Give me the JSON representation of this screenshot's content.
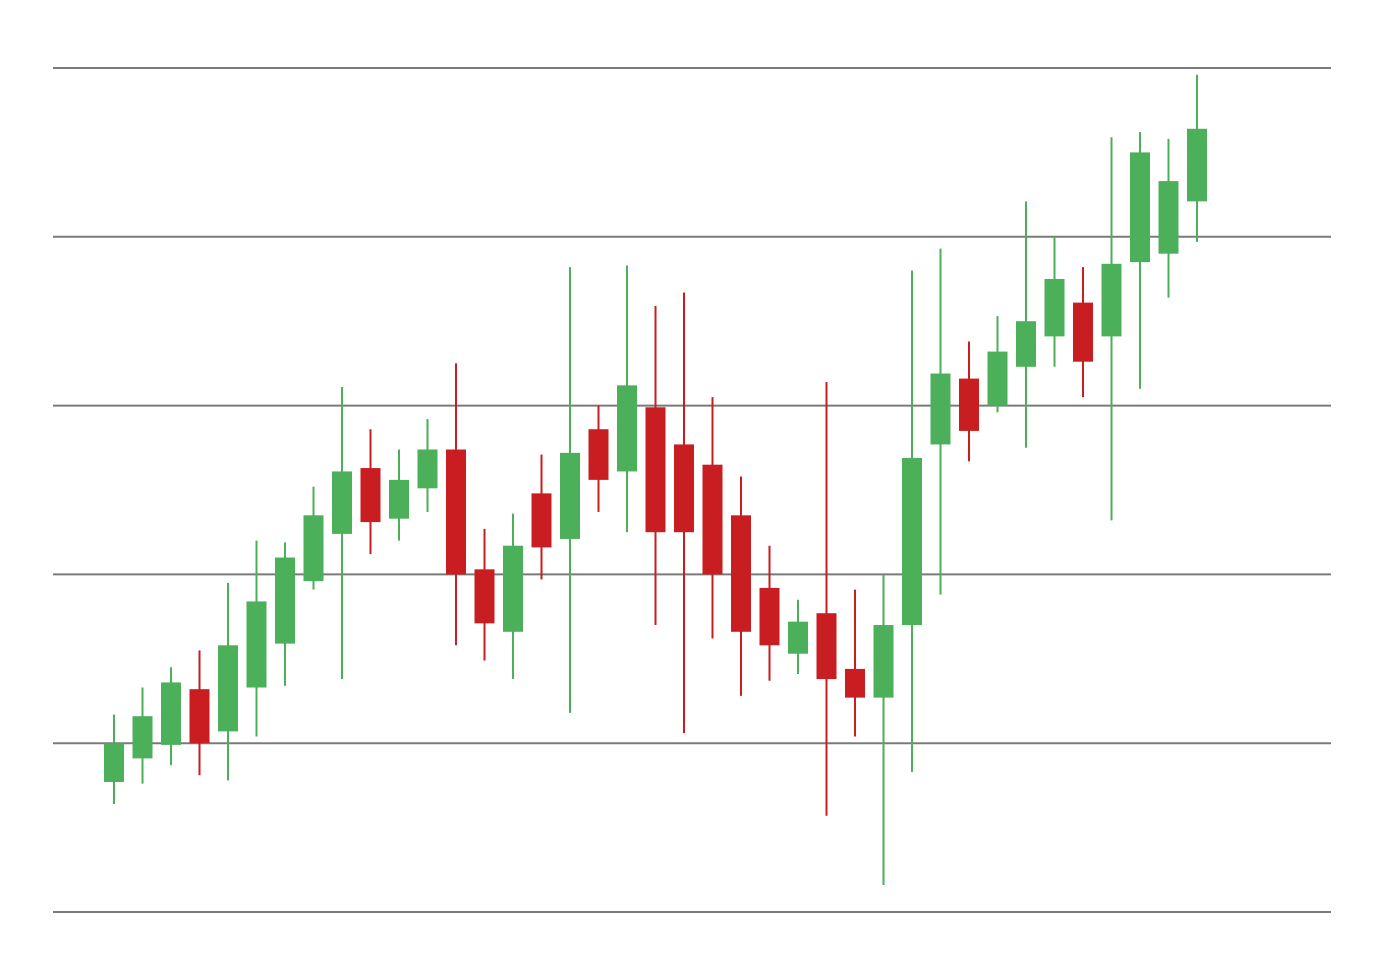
{
  "chart_data": {
    "type": "candlestick",
    "title": "",
    "xlabel": "",
    "ylabel": "",
    "ylim": [
      0,
      5
    ],
    "grid": true,
    "gridlines": [
      0,
      1,
      2,
      3,
      4,
      5
    ],
    "axis_labels_shown": false,
    "colors": {
      "up": "#4caf5a",
      "down": "#c81e22",
      "grid": "#7a7a7a",
      "background": "#ffffff"
    },
    "candles": [
      {
        "open": 0.77,
        "close": 1.0,
        "high": 1.17,
        "low": 0.64
      },
      {
        "open": 0.91,
        "close": 1.16,
        "high": 1.33,
        "low": 0.76
      },
      {
        "open": 0.99,
        "close": 1.36,
        "high": 1.45,
        "low": 0.87
      },
      {
        "open": 1.32,
        "close": 1.0,
        "high": 1.55,
        "low": 0.81
      },
      {
        "open": 1.07,
        "close": 1.58,
        "high": 1.95,
        "low": 0.78
      },
      {
        "open": 1.33,
        "close": 1.84,
        "high": 2.2,
        "low": 1.04
      },
      {
        "open": 1.59,
        "close": 2.1,
        "high": 2.19,
        "low": 1.34
      },
      {
        "open": 1.96,
        "close": 2.35,
        "high": 2.52,
        "low": 1.91
      },
      {
        "open": 2.24,
        "close": 2.61,
        "high": 3.11,
        "low": 1.38
      },
      {
        "open": 2.63,
        "close": 2.31,
        "high": 2.86,
        "low": 2.12
      },
      {
        "open": 2.33,
        "close": 2.56,
        "high": 2.74,
        "low": 2.2
      },
      {
        "open": 2.51,
        "close": 2.74,
        "high": 2.92,
        "low": 2.37
      },
      {
        "open": 2.74,
        "close": 2.0,
        "high": 3.25,
        "low": 1.58
      },
      {
        "open": 2.03,
        "close": 1.71,
        "high": 2.27,
        "low": 1.49
      },
      {
        "open": 1.66,
        "close": 2.17,
        "high": 2.36,
        "low": 1.38
      },
      {
        "open": 2.48,
        "close": 2.16,
        "high": 2.71,
        "low": 1.97
      },
      {
        "open": 2.21,
        "close": 2.72,
        "high": 3.82,
        "low": 1.18
      },
      {
        "open": 2.86,
        "close": 2.56,
        "high": 3.0,
        "low": 2.37
      },
      {
        "open": 2.61,
        "close": 3.12,
        "high": 3.83,
        "low": 2.25
      },
      {
        "open": 2.99,
        "close": 2.25,
        "high": 3.59,
        "low": 1.7
      },
      {
        "open": 2.77,
        "close": 2.25,
        "high": 3.67,
        "low": 1.06
      },
      {
        "open": 2.65,
        "close": 2.0,
        "high": 3.05,
        "low": 1.62
      },
      {
        "open": 2.35,
        "close": 1.66,
        "high": 2.58,
        "low": 1.28
      },
      {
        "open": 1.92,
        "close": 1.58,
        "high": 2.17,
        "low": 1.37
      },
      {
        "open": 1.53,
        "close": 1.72,
        "high": 1.85,
        "low": 1.41
      },
      {
        "open": 1.77,
        "close": 1.38,
        "high": 3.14,
        "low": 0.57
      },
      {
        "open": 1.44,
        "close": 1.27,
        "high": 1.91,
        "low": 1.04
      },
      {
        "open": 1.27,
        "close": 1.7,
        "high": 2.0,
        "low": 0.16
      },
      {
        "open": 1.7,
        "close": 2.69,
        "high": 3.8,
        "low": 0.83
      },
      {
        "open": 2.77,
        "close": 3.19,
        "high": 3.93,
        "low": 1.88
      },
      {
        "open": 3.16,
        "close": 2.85,
        "high": 3.38,
        "low": 2.67
      },
      {
        "open": 3.0,
        "close": 3.32,
        "high": 3.53,
        "low": 2.96
      },
      {
        "open": 3.23,
        "close": 3.5,
        "high": 4.21,
        "low": 2.75
      },
      {
        "open": 3.41,
        "close": 3.75,
        "high": 4.0,
        "low": 3.23
      },
      {
        "open": 3.61,
        "close": 3.26,
        "high": 3.82,
        "low": 3.05
      },
      {
        "open": 3.41,
        "close": 3.84,
        "high": 4.59,
        "low": 2.32
      },
      {
        "open": 3.85,
        "close": 4.5,
        "high": 4.62,
        "low": 3.1
      },
      {
        "open": 3.9,
        "close": 4.33,
        "high": 4.58,
        "low": 3.64
      },
      {
        "open": 4.21,
        "close": 4.64,
        "high": 4.96,
        "low": 3.97
      }
    ]
  }
}
